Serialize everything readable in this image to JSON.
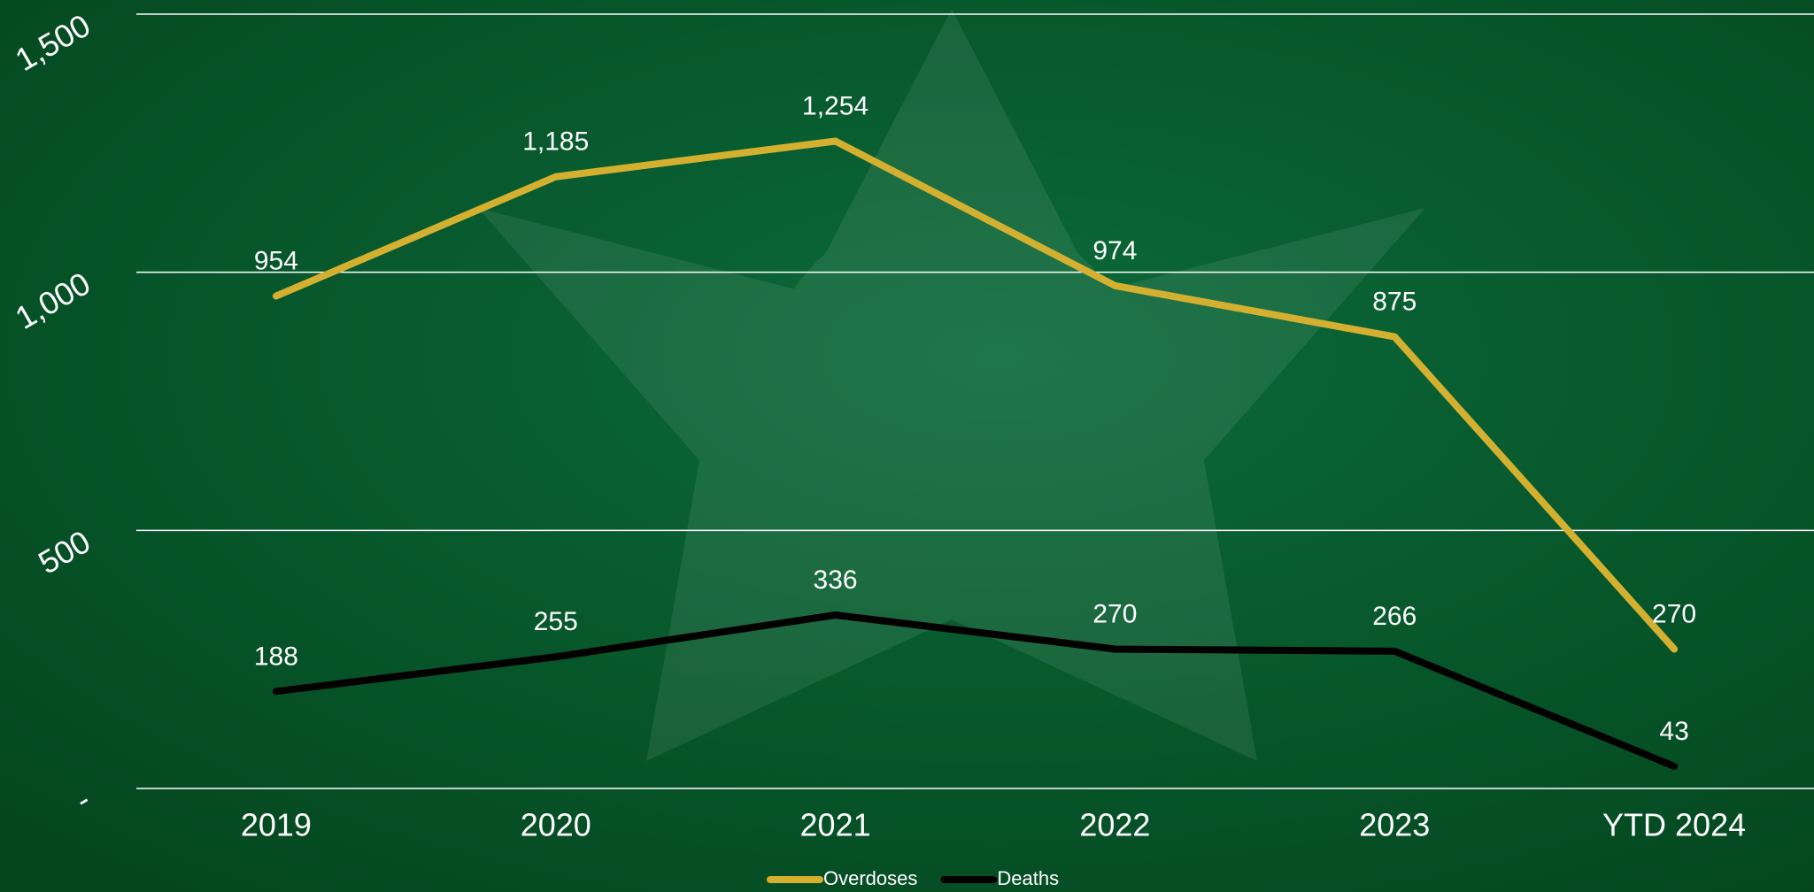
{
  "chart_data": {
    "type": "line",
    "categories": [
      "2019",
      "2020",
      "2021",
      "2022",
      "2023",
      "YTD 2024"
    ],
    "series": [
      {
        "name": "Overdoses",
        "color": "#d4b030",
        "values": [
          954,
          1185,
          1254,
          974,
          875,
          270
        ],
        "value_labels": [
          "954",
          "1,185",
          "1,254",
          "974",
          "875",
          "270"
        ]
      },
      {
        "name": "Deaths",
        "color": "#000000",
        "values": [
          188,
          255,
          336,
          270,
          266,
          43
        ]
      }
    ],
    "ylim": [
      0,
      1500
    ],
    "yticks": [
      {
        "value": 0,
        "label": "-"
      },
      500,
      {
        "value": 1000,
        "label": "1,000"
      },
      {
        "value": 1500,
        "label": "1,500"
      }
    ],
    "grid": true,
    "legend": "bottom"
  }
}
